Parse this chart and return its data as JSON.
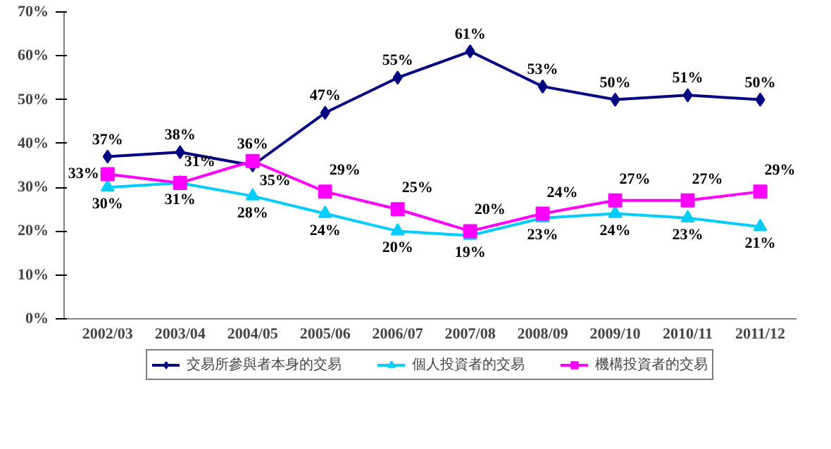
{
  "chart_data": {
    "type": "line",
    "categories": [
      "2002/03",
      "2003/04",
      "2004/05",
      "2005/06",
      "2006/07",
      "2007/08",
      "2008/09",
      "2009/10",
      "2010/11",
      "2011/12"
    ],
    "series": [
      {
        "name": "交易所參與者本身的交易",
        "color": "#000080",
        "marker": "diamond",
        "values": [
          37,
          38,
          35,
          47,
          55,
          61,
          53,
          50,
          51,
          50
        ],
        "value_labels": [
          "37%",
          "38%",
          "35%",
          "47%",
          "55%",
          "61%",
          "53%",
          "50%",
          "51%",
          "50%"
        ]
      },
      {
        "name": "個人投資者的交易",
        "color": "#00ccff",
        "marker": "triangle",
        "values": [
          30,
          31,
          28,
          24,
          20,
          19,
          23,
          24,
          23,
          21
        ],
        "value_labels": [
          "30%",
          "31%",
          "28%",
          "24%",
          "20%",
          "19%",
          "23%",
          "24%",
          "23%",
          "21%"
        ]
      },
      {
        "name": "機構投資者的交易",
        "color": "#ff00ff",
        "marker": "square",
        "values": [
          33,
          31,
          36,
          29,
          25,
          20,
          24,
          27,
          27,
          29
        ],
        "value_labels": [
          "33%",
          "31%",
          "36%",
          "29%",
          "25%",
          "20%",
          "24%",
          "27%",
          "27%",
          "29%"
        ]
      }
    ],
    "ylim": [
      0,
      70
    ],
    "yticks": [
      {
        "value": 0,
        "label": "0%"
      },
      {
        "value": 10,
        "label": "10%"
      },
      {
        "value": 20,
        "label": "20%"
      },
      {
        "value": 30,
        "label": "30%"
      },
      {
        "value": 40,
        "label": "40%"
      },
      {
        "value": 50,
        "label": "50%"
      },
      {
        "value": 60,
        "label": "60%"
      },
      {
        "value": 70,
        "label": "70%"
      }
    ],
    "grid": false,
    "legend": "bottom"
  }
}
